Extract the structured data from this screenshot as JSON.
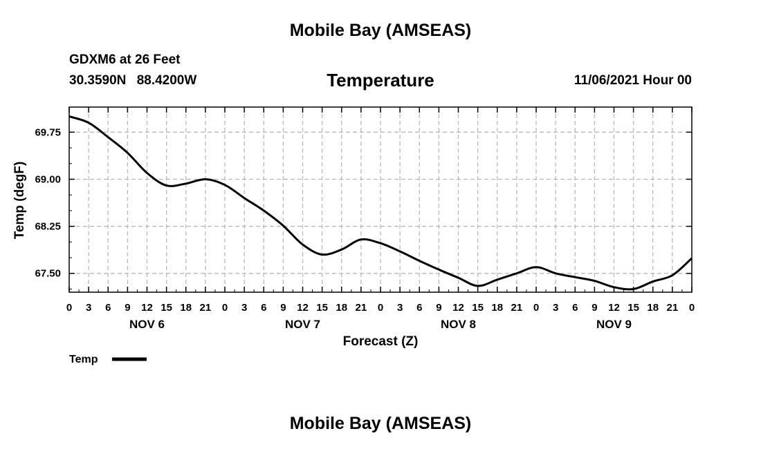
{
  "page": {
    "title": "Mobile Bay (AMSEAS)",
    "bottom_title": "Mobile Bay (AMSEAS)",
    "station": "GDXM6 at 26 Feet",
    "lat": "30.3590N",
    "lon": "88.4200W",
    "variable": "Temperature",
    "run": "11/06/2021 Hour 00"
  },
  "chart_data": {
    "type": "line",
    "title": "Temperature",
    "xlabel": "Forecast (Z)",
    "ylabel": "Temp (degF)",
    "x_unit": "hours from 11/06/2021 00Z",
    "xlim": [
      0,
      96
    ],
    "ylim": [
      67.2,
      70.15
    ],
    "grid": true,
    "legend_position": "bottom-left",
    "x_tick_labels": [
      "0",
      "3",
      "6",
      "9",
      "12",
      "15",
      "18",
      "21",
      "0",
      "3",
      "6",
      "9",
      "12",
      "15",
      "18",
      "21",
      "0",
      "3",
      "6",
      "9",
      "12",
      "15",
      "18",
      "21",
      "0",
      "3",
      "6",
      "9",
      "12",
      "15",
      "18",
      "21",
      "0"
    ],
    "day_labels": [
      "NOV 6",
      "NOV 7",
      "NOV 8",
      "NOV 9"
    ],
    "y_tick_values": [
      67.5,
      68.25,
      69.0,
      69.75
    ],
    "y_tick_labels": [
      "67.50",
      "68.25",
      "69.00",
      "69.75"
    ],
    "series": [
      {
        "name": "Temp",
        "x": [
          0,
          3,
          6,
          9,
          12,
          15,
          18,
          21,
          24,
          27,
          30,
          33,
          36,
          39,
          42,
          45,
          48,
          51,
          54,
          57,
          60,
          63,
          66,
          69,
          72,
          75,
          78,
          81,
          84,
          87,
          90,
          93,
          96
        ],
        "values": [
          70.0,
          69.9,
          69.67,
          69.42,
          69.1,
          68.9,
          68.93,
          69.0,
          68.91,
          68.7,
          68.5,
          68.26,
          67.96,
          67.8,
          67.88,
          68.04,
          67.98,
          67.85,
          67.7,
          67.56,
          67.43,
          67.3,
          67.4,
          67.5,
          67.6,
          67.5,
          67.44,
          67.38,
          67.28,
          67.25,
          67.37,
          67.47,
          67.74
        ]
      }
    ]
  }
}
